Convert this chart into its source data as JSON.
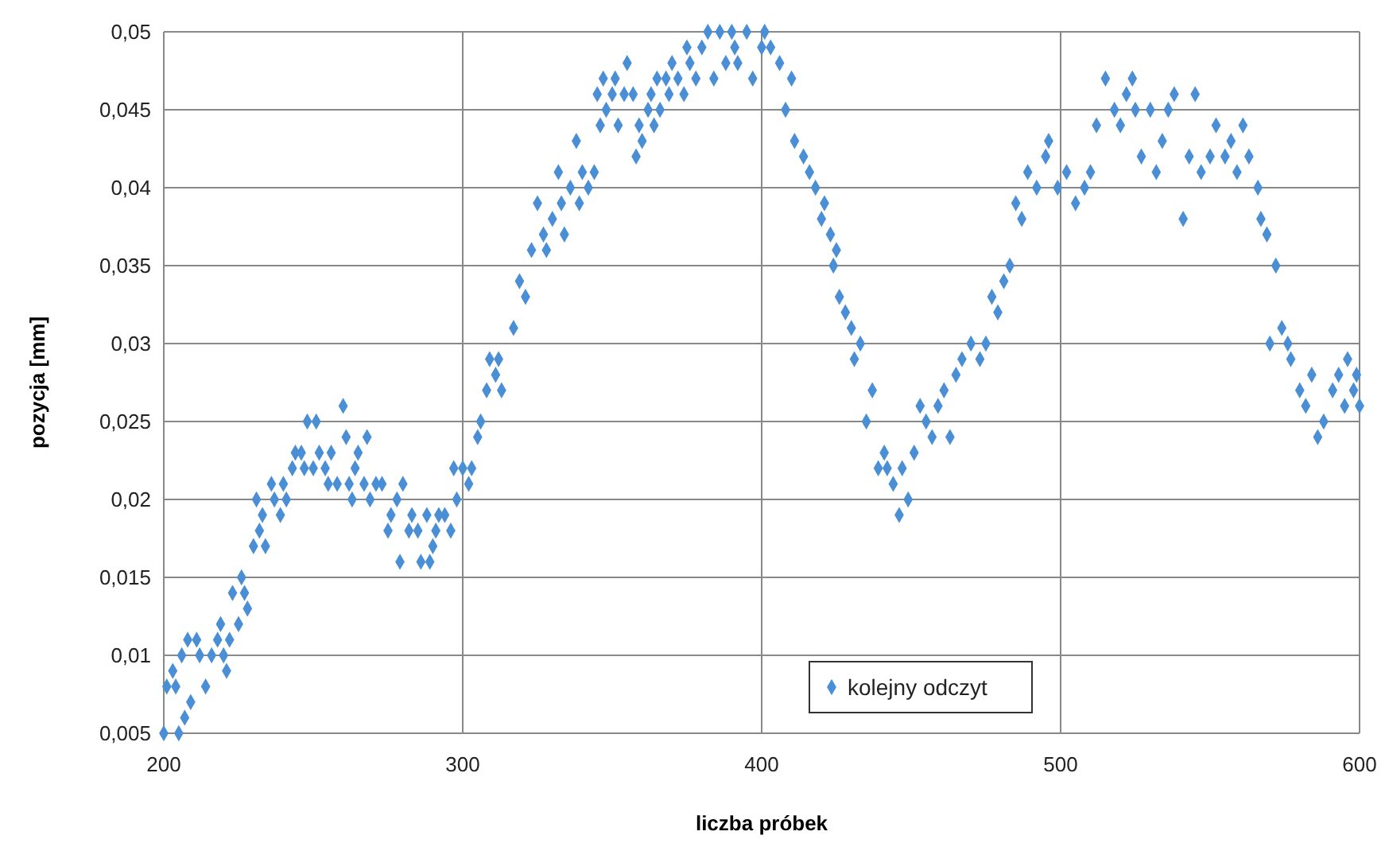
{
  "chart_data": {
    "type": "scatter",
    "xlabel": "liczba próbek",
    "ylabel": "pozycja [mm]",
    "xlim": [
      200,
      600
    ],
    "ylim": [
      0.005,
      0.05
    ],
    "xticks": [
      200,
      300,
      400,
      500,
      600
    ],
    "yticks": [
      {
        "value": 0.005,
        "label": "0,005"
      },
      {
        "value": 0.01,
        "label": "0,01"
      },
      {
        "value": 0.015,
        "label": "0,015"
      },
      {
        "value": 0.02,
        "label": "0,02"
      },
      {
        "value": 0.025,
        "label": "0,025"
      },
      {
        "value": 0.03,
        "label": "0,03"
      },
      {
        "value": 0.035,
        "label": "0,035"
      },
      {
        "value": 0.04,
        "label": "0,04"
      },
      {
        "value": 0.045,
        "label": "0,045"
      },
      {
        "value": 0.05,
        "label": "0,05"
      }
    ],
    "grid": true,
    "legend": "bottom",
    "marker": "diamond",
    "series": [
      {
        "name": "kolejny odczyt",
        "color": "#4a8fd6",
        "x": [
          200,
          201,
          203,
          204,
          205,
          206,
          207,
          208,
          209,
          211,
          212,
          214,
          216,
          218,
          219,
          220,
          221,
          222,
          223,
          225,
          226,
          227,
          228,
          230,
          231,
          232,
          233,
          234,
          236,
          237,
          239,
          240,
          241,
          243,
          244,
          246,
          247,
          248,
          250,
          251,
          252,
          254,
          255,
          256,
          258,
          260,
          261,
          262,
          263,
          264,
          265,
          267,
          268,
          269,
          271,
          273,
          275,
          276,
          278,
          279,
          280,
          282,
          283,
          285,
          286,
          288,
          289,
          290,
          291,
          292,
          294,
          296,
          297,
          298,
          300,
          302,
          303,
          305,
          306,
          308,
          309,
          311,
          312,
          313,
          317,
          319,
          321,
          323,
          325,
          327,
          328,
          330,
          332,
          333,
          334,
          336,
          338,
          339,
          340,
          342,
          344,
          345,
          346,
          347,
          348,
          350,
          351,
          352,
          354,
          355,
          357,
          358,
          359,
          360,
          362,
          363,
          364,
          365,
          366,
          368,
          369,
          370,
          372,
          374,
          375,
          376,
          378,
          380,
          382,
          384,
          386,
          388,
          390,
          391,
          392,
          395,
          397,
          400,
          401,
          403,
          406,
          408,
          410,
          411,
          414,
          416,
          418,
          420,
          421,
          423,
          424,
          425,
          426,
          428,
          430,
          431,
          433,
          435,
          437,
          439,
          441,
          442,
          444,
          446,
          447,
          449,
          451,
          453,
          455,
          457,
          459,
          461,
          463,
          465,
          467,
          470,
          473,
          475,
          477,
          479,
          481,
          483,
          485,
          487,
          489,
          492,
          495,
          496,
          499,
          502,
          505,
          508,
          510,
          512,
          515,
          518,
          520,
          522,
          524,
          525,
          527,
          530,
          532,
          534,
          536,
          538,
          541,
          543,
          545,
          547,
          550,
          552,
          555,
          557,
          559,
          561,
          563,
          566,
          567,
          569,
          570,
          572,
          574,
          576,
          577,
          580,
          582,
          584,
          586,
          588,
          591,
          593,
          595,
          596,
          598,
          599,
          600
        ],
        "values": [
          0.005,
          0.008,
          0.009,
          0.008,
          0.005,
          0.01,
          0.006,
          0.011,
          0.007,
          0.011,
          0.01,
          0.008,
          0.01,
          0.011,
          0.012,
          0.01,
          0.009,
          0.011,
          0.014,
          0.012,
          0.015,
          0.014,
          0.013,
          0.017,
          0.02,
          0.018,
          0.019,
          0.017,
          0.021,
          0.02,
          0.019,
          0.021,
          0.02,
          0.022,
          0.023,
          0.023,
          0.022,
          0.025,
          0.022,
          0.025,
          0.023,
          0.022,
          0.021,
          0.023,
          0.021,
          0.026,
          0.024,
          0.021,
          0.02,
          0.022,
          0.023,
          0.021,
          0.024,
          0.02,
          0.021,
          0.021,
          0.018,
          0.019,
          0.02,
          0.016,
          0.021,
          0.018,
          0.019,
          0.018,
          0.016,
          0.019,
          0.016,
          0.017,
          0.018,
          0.019,
          0.019,
          0.018,
          0.022,
          0.02,
          0.022,
          0.021,
          0.022,
          0.024,
          0.025,
          0.027,
          0.029,
          0.028,
          0.029,
          0.027,
          0.031,
          0.034,
          0.033,
          0.036,
          0.039,
          0.037,
          0.036,
          0.038,
          0.041,
          0.039,
          0.037,
          0.04,
          0.043,
          0.039,
          0.041,
          0.04,
          0.041,
          0.046,
          0.044,
          0.047,
          0.045,
          0.046,
          0.047,
          0.044,
          0.046,
          0.048,
          0.046,
          0.042,
          0.044,
          0.043,
          0.045,
          0.046,
          0.044,
          0.047,
          0.045,
          0.047,
          0.046,
          0.048,
          0.047,
          0.046,
          0.049,
          0.048,
          0.047,
          0.049,
          0.05,
          0.047,
          0.05,
          0.048,
          0.05,
          0.049,
          0.048,
          0.05,
          0.047,
          0.049,
          0.05,
          0.049,
          0.048,
          0.045,
          0.047,
          0.043,
          0.042,
          0.041,
          0.04,
          0.038,
          0.039,
          0.037,
          0.035,
          0.036,
          0.033,
          0.032,
          0.031,
          0.029,
          0.03,
          0.025,
          0.027,
          0.022,
          0.023,
          0.022,
          0.021,
          0.019,
          0.022,
          0.02,
          0.023,
          0.026,
          0.025,
          0.024,
          0.026,
          0.027,
          0.024,
          0.028,
          0.029,
          0.03,
          0.029,
          0.03,
          0.033,
          0.032,
          0.034,
          0.035,
          0.039,
          0.038,
          0.041,
          0.04,
          0.042,
          0.043,
          0.04,
          0.041,
          0.039,
          0.04,
          0.041,
          0.044,
          0.047,
          0.045,
          0.044,
          0.046,
          0.047,
          0.045,
          0.042,
          0.045,
          0.041,
          0.043,
          0.045,
          0.046,
          0.038,
          0.042,
          0.046,
          0.041,
          0.042,
          0.044,
          0.042,
          0.043,
          0.041,
          0.044,
          0.042,
          0.04,
          0.038,
          0.037,
          0.03,
          0.035,
          0.031,
          0.03,
          0.029,
          0.027,
          0.026,
          0.028,
          0.024,
          0.025,
          0.027,
          0.028,
          0.026,
          0.029,
          0.027,
          0.028,
          0.026
        ]
      }
    ]
  }
}
